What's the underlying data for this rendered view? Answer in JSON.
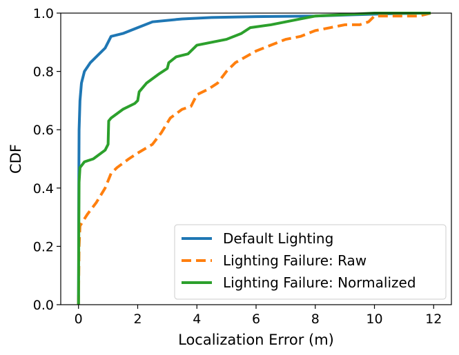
{
  "chart_data": {
    "type": "line",
    "title": "",
    "xlabel": "Localization Error (m)",
    "ylabel": "CDF",
    "xlim": [
      -0.6,
      12.6
    ],
    "ylim": [
      0.0,
      1.0
    ],
    "xticks": [
      0,
      2,
      4,
      6,
      8,
      10,
      12
    ],
    "yticks": [
      0.0,
      0.2,
      0.4,
      0.6,
      0.8,
      1.0
    ],
    "xtick_labels": [
      "0",
      "2",
      "4",
      "6",
      "8",
      "10",
      "12"
    ],
    "ytick_labels": [
      "0.0",
      "0.2",
      "0.4",
      "0.6",
      "0.8",
      "1.0"
    ],
    "grid": false,
    "legend_position": "lower-right",
    "series": [
      {
        "name": "Default Lighting",
        "color": "#1f77b4",
        "dash": "solid",
        "points": [
          [
            0,
            0
          ],
          [
            0.01,
            0.4
          ],
          [
            0.02,
            0.6
          ],
          [
            0.05,
            0.7
          ],
          [
            0.1,
            0.76
          ],
          [
            0.2,
            0.8
          ],
          [
            0.4,
            0.83
          ],
          [
            0.7,
            0.86
          ],
          [
            0.9,
            0.88
          ],
          [
            1.0,
            0.9
          ],
          [
            1.1,
            0.92
          ],
          [
            1.5,
            0.93
          ],
          [
            2.0,
            0.95
          ],
          [
            2.5,
            0.97
          ],
          [
            3.5,
            0.98
          ],
          [
            4.5,
            0.985
          ],
          [
            6,
            0.988
          ],
          [
            8,
            0.99
          ],
          [
            9.5,
            0.995
          ],
          [
            10.5,
            0.998
          ],
          [
            11.8,
            1.0
          ]
        ]
      },
      {
        "name": "Lighting Failure: Raw",
        "color": "#ff7f0e",
        "dash": "dashed",
        "points": [
          [
            0,
            0
          ],
          [
            0.02,
            0.2
          ],
          [
            0.05,
            0.27
          ],
          [
            0.3,
            0.31
          ],
          [
            0.6,
            0.35
          ],
          [
            0.9,
            0.4
          ],
          [
            1.1,
            0.45
          ],
          [
            1.3,
            0.47
          ],
          [
            1.7,
            0.5
          ],
          [
            2.0,
            0.52
          ],
          [
            2.5,
            0.55
          ],
          [
            2.8,
            0.59
          ],
          [
            3.1,
            0.64
          ],
          [
            3.5,
            0.67
          ],
          [
            3.8,
            0.68
          ],
          [
            4.0,
            0.72
          ],
          [
            4.4,
            0.74
          ],
          [
            4.7,
            0.76
          ],
          [
            5.0,
            0.8
          ],
          [
            5.3,
            0.83
          ],
          [
            6.0,
            0.87
          ],
          [
            6.5,
            0.89
          ],
          [
            7.0,
            0.91
          ],
          [
            7.5,
            0.92
          ],
          [
            8.0,
            0.94
          ],
          [
            8.5,
            0.95
          ],
          [
            9.0,
            0.96
          ],
          [
            9.5,
            0.96
          ],
          [
            9.8,
            0.97
          ],
          [
            10.0,
            0.99
          ],
          [
            11.0,
            0.99
          ],
          [
            11.5,
            0.99
          ],
          [
            11.9,
            1.0
          ]
        ]
      },
      {
        "name": "Lighting Failure: Normalized",
        "color": "#2ca02c",
        "dash": "solid",
        "points": [
          [
            0,
            0
          ],
          [
            0.01,
            0.25
          ],
          [
            0.02,
            0.42
          ],
          [
            0.05,
            0.47
          ],
          [
            0.2,
            0.49
          ],
          [
            0.5,
            0.5
          ],
          [
            0.9,
            0.53
          ],
          [
            1.0,
            0.55
          ],
          [
            1.02,
            0.63
          ],
          [
            1.1,
            0.64
          ],
          [
            1.5,
            0.67
          ],
          [
            1.9,
            0.69
          ],
          [
            2.0,
            0.7
          ],
          [
            2.05,
            0.73
          ],
          [
            2.3,
            0.76
          ],
          [
            2.7,
            0.79
          ],
          [
            3.0,
            0.81
          ],
          [
            3.05,
            0.83
          ],
          [
            3.3,
            0.85
          ],
          [
            3.7,
            0.86
          ],
          [
            4.0,
            0.89
          ],
          [
            4.5,
            0.9
          ],
          [
            5.0,
            0.91
          ],
          [
            5.5,
            0.93
          ],
          [
            5.8,
            0.95
          ],
          [
            6.5,
            0.96
          ],
          [
            7.0,
            0.97
          ],
          [
            7.5,
            0.98
          ],
          [
            8.0,
            0.99
          ],
          [
            9.0,
            0.995
          ],
          [
            10.0,
            1.0
          ],
          [
            11.9,
            1.0
          ]
        ]
      }
    ]
  }
}
